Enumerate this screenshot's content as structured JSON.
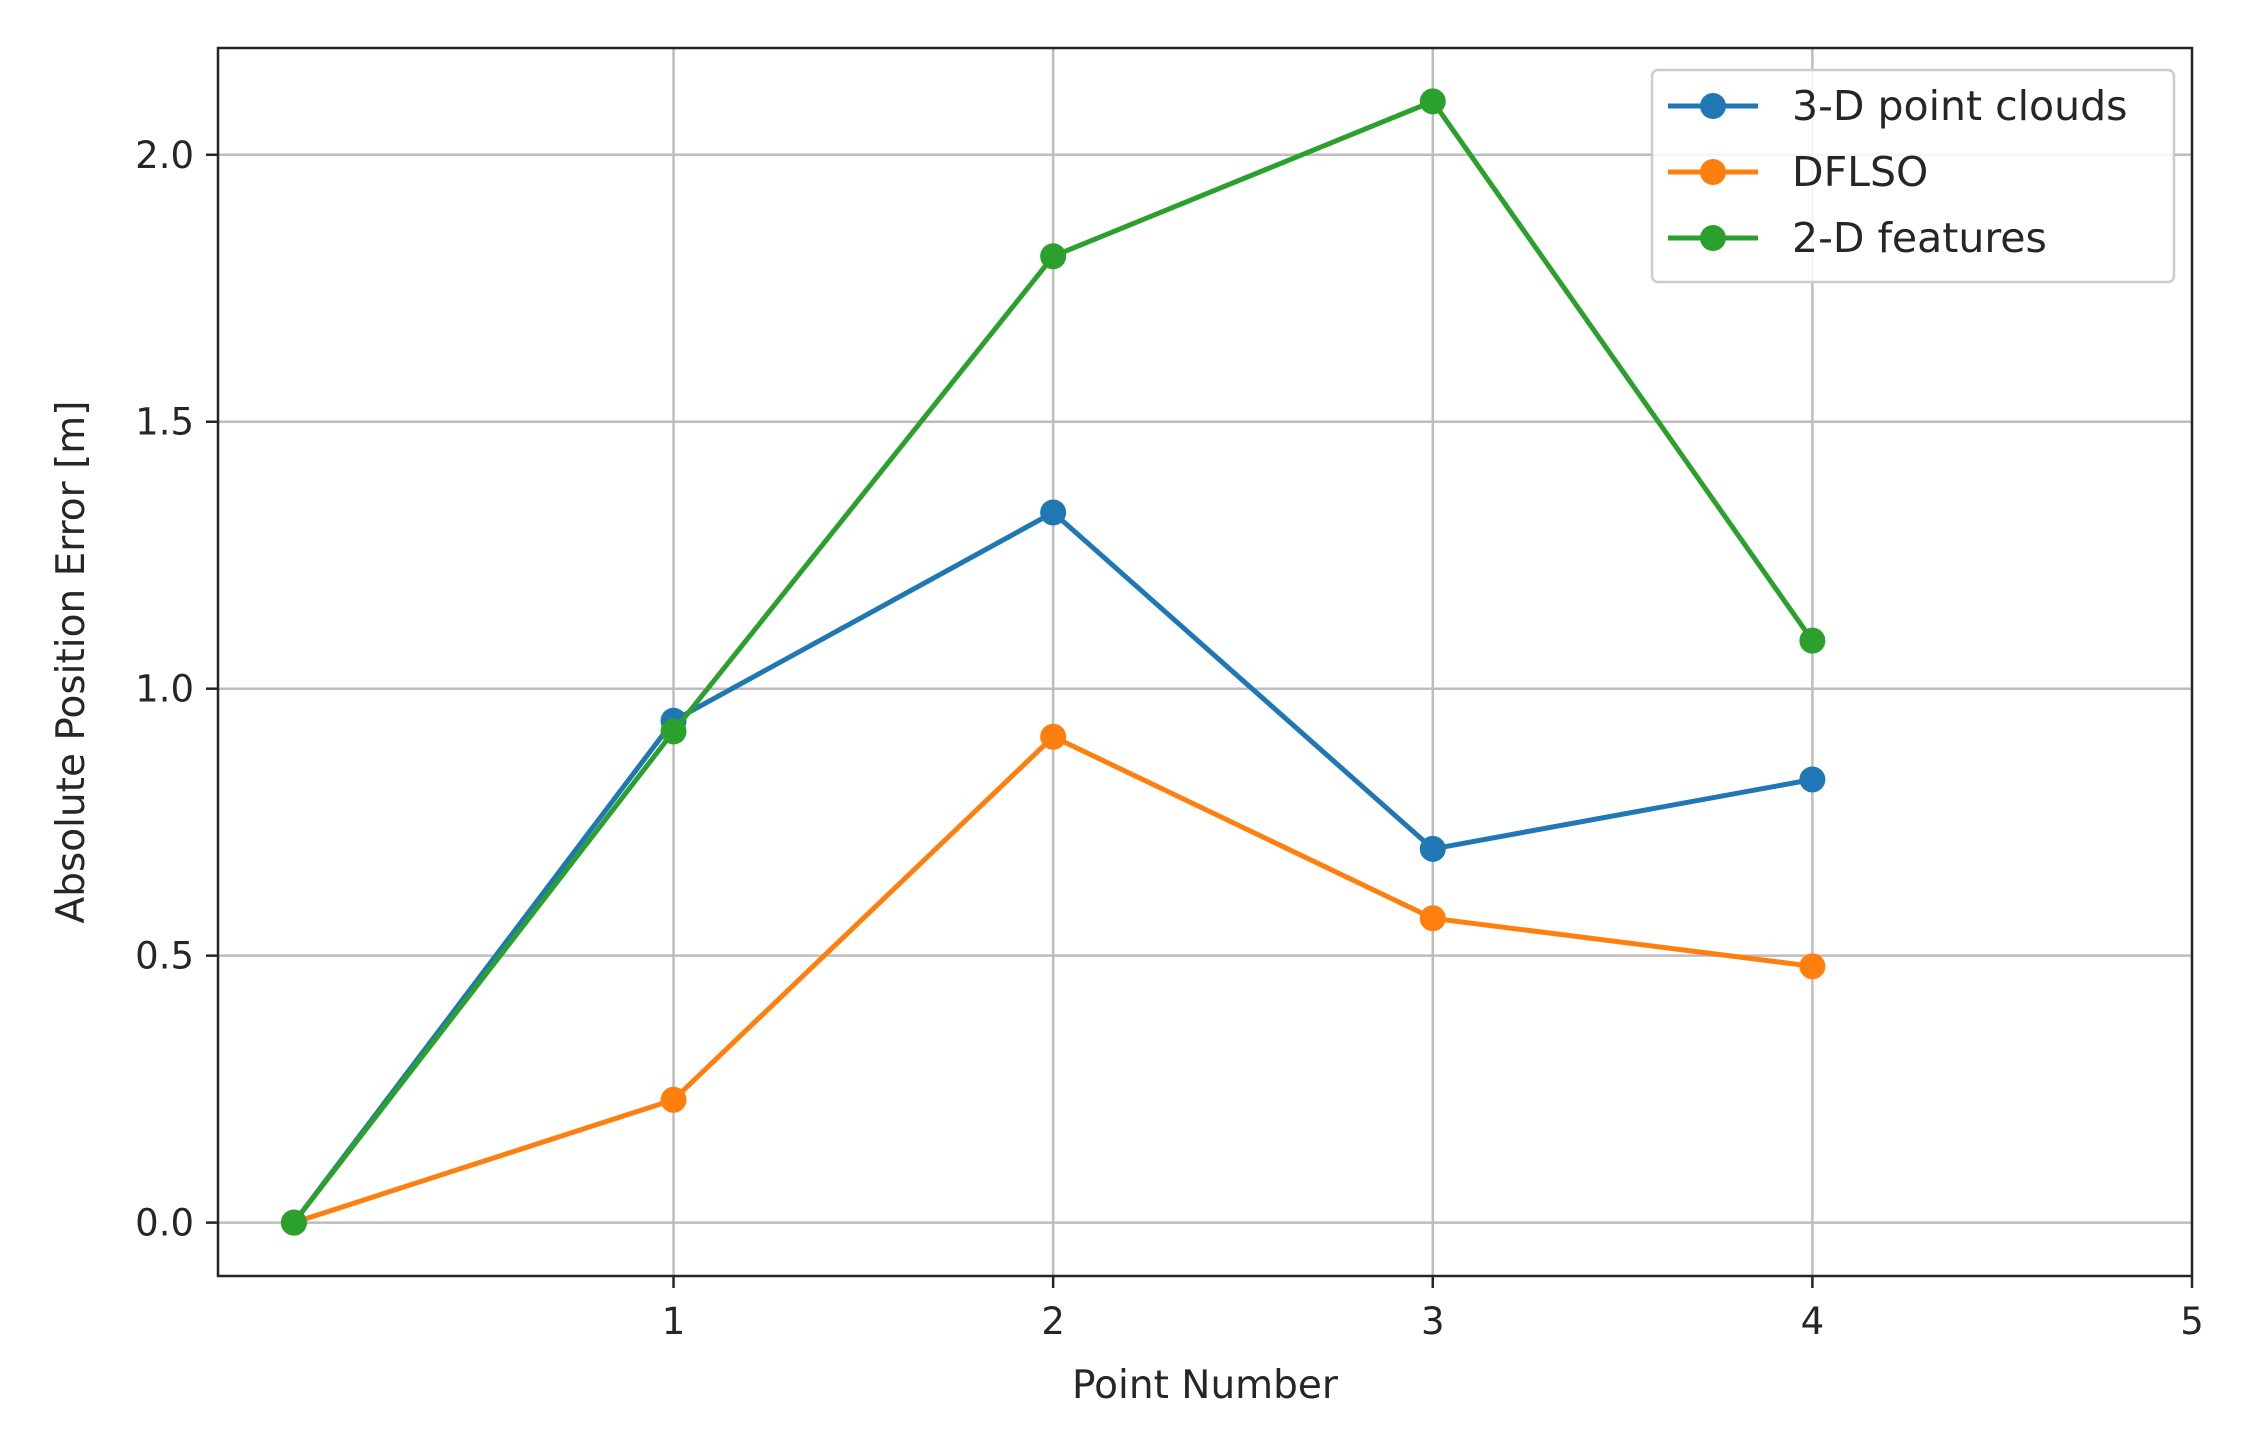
{
  "chart_data": {
    "type": "line",
    "title": "",
    "xlabel": "Point Number",
    "ylabel": "Absolute Position Error [m]",
    "xlim": [
      -0.2,
      5
    ],
    "ylim": [
      -0.1,
      2.2
    ],
    "xticks": [
      1,
      2,
      3,
      4,
      5
    ],
    "xtick_labels": [
      "1",
      "2",
      "3",
      "4",
      "5"
    ],
    "yticks": [
      0.0,
      0.5,
      1.0,
      1.5,
      2.0
    ],
    "ytick_labels": [
      "0.0",
      "0.5",
      "1.0",
      "1.5",
      "2.0"
    ],
    "grid": true,
    "legend_position": "top-right",
    "x": [
      0,
      1,
      2,
      3,
      4
    ],
    "series": [
      {
        "name": "3-D point clouds",
        "color": "#1f77b4",
        "marker": "circle",
        "values": [
          0.0,
          0.94,
          1.33,
          0.7,
          0.83
        ]
      },
      {
        "name": "DFLSO",
        "color": "#ff7f0e",
        "marker": "circle",
        "values": [
          0.0,
          0.23,
          0.91,
          0.57,
          0.48
        ]
      },
      {
        "name": "2-D features",
        "color": "#2ca02c",
        "marker": "circle",
        "values": [
          0.0,
          0.92,
          1.81,
          2.1,
          1.09
        ]
      }
    ]
  }
}
